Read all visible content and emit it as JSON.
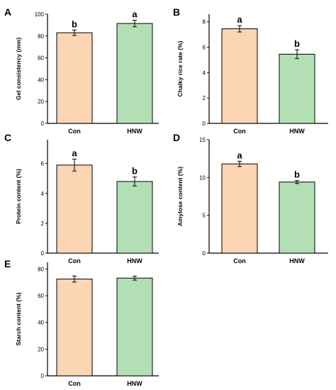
{
  "colors": {
    "con": "#fcd5b4",
    "hnw": "#b2e0b4",
    "stroke": "#000000"
  },
  "chart_data": [
    {
      "panel": "A",
      "type": "bar",
      "categories": [
        "Con",
        "HNW"
      ],
      "values": [
        83,
        91.5
      ],
      "errors": [
        2.5,
        3
      ],
      "letters": [
        "b",
        "a"
      ],
      "ylabel": "Gel consistency (mm)",
      "ylim": [
        0,
        100
      ],
      "yticks": [
        0,
        20,
        40,
        60,
        80,
        100
      ],
      "grid": false
    },
    {
      "panel": "B",
      "type": "bar",
      "categories": [
        "Con",
        "HNW"
      ],
      "values": [
        7.45,
        5.45
      ],
      "errors": [
        0.25,
        0.35
      ],
      "letters": [
        "a",
        "b"
      ],
      "ylabel": "Chalky rice rate (%)",
      "ylim": [
        0,
        8.6
      ],
      "yticks": [
        0,
        2,
        4,
        6,
        8
      ],
      "grid": false
    },
    {
      "panel": "C",
      "type": "bar",
      "categories": [
        "Con",
        "HNW"
      ],
      "values": [
        5.9,
        4.8
      ],
      "errors": [
        0.4,
        0.3
      ],
      "letters": [
        "a",
        "b"
      ],
      "ylabel": "Protein content (%)",
      "ylim": [
        0,
        7.6
      ],
      "yticks": [
        0,
        2,
        4,
        6
      ],
      "grid": false
    },
    {
      "panel": "D",
      "type": "bar",
      "categories": [
        "Con",
        "HNW"
      ],
      "values": [
        11.8,
        9.4
      ],
      "errors": [
        0.35,
        0.2
      ],
      "letters": [
        "a",
        "b"
      ],
      "ylabel": "Amylose content (%)",
      "ylim": [
        0,
        15
      ],
      "yticks": [
        0,
        5,
        10,
        15
      ],
      "grid": false
    },
    {
      "panel": "E",
      "type": "bar",
      "categories": [
        "Con",
        "HNW"
      ],
      "values": [
        72.5,
        73.2
      ],
      "errors": [
        2.3,
        1.5
      ],
      "letters": [
        "",
        ""
      ],
      "ylabel": "Starch content (%)",
      "ylim": [
        0,
        85
      ],
      "yticks": [
        0,
        20,
        40,
        60,
        80
      ],
      "grid": false
    }
  ]
}
